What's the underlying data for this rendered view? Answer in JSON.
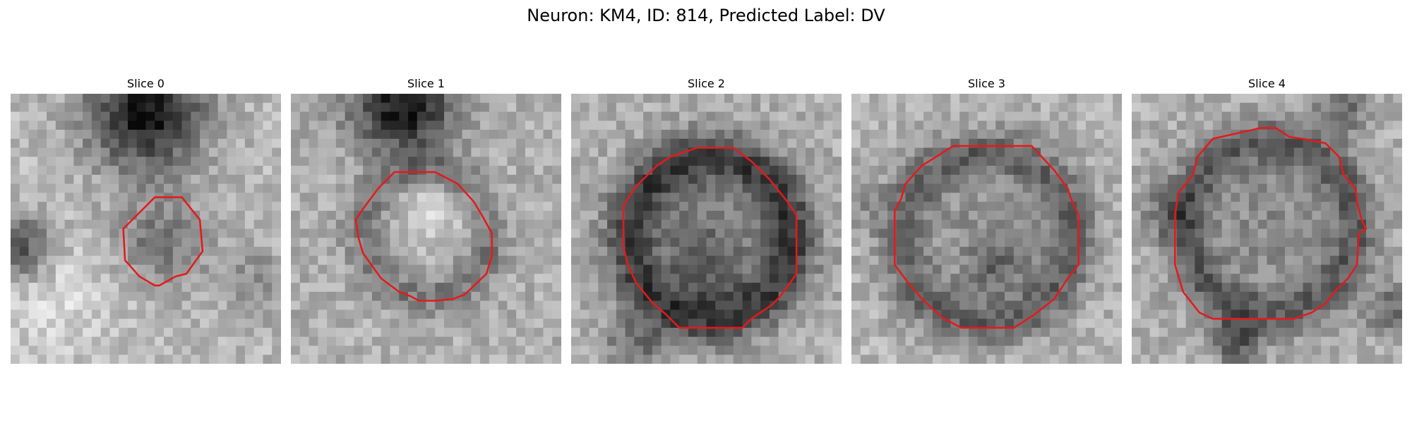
{
  "title": "Neuron: KM4, ID: 814, Predicted Label: DV",
  "outline_color": "#e41a1c",
  "slices": [
    {
      "label": "Slice 0"
    },
    {
      "label": "Slice 1"
    },
    {
      "label": "Slice 2"
    },
    {
      "label": "Slice 3"
    },
    {
      "label": "Slice 4"
    }
  ]
}
